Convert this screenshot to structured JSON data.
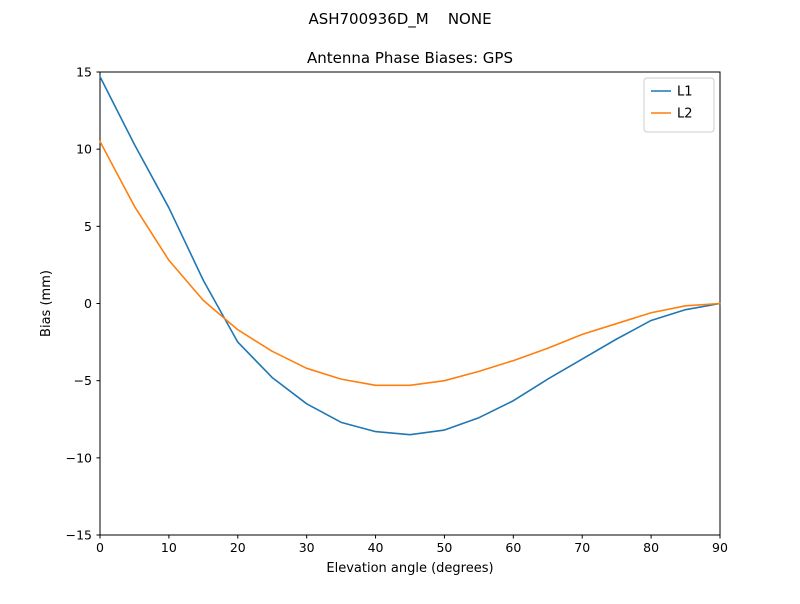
{
  "chart_data": {
    "type": "line",
    "suptitle": "ASH700936D_M    NONE",
    "title": "Antenna Phase Biases: GPS",
    "xlabel": "Elevation angle (degrees)",
    "ylabel": "Bias (mm)",
    "xlim": [
      0,
      90
    ],
    "ylim": [
      -15,
      15
    ],
    "xticks": [
      0,
      10,
      20,
      30,
      40,
      50,
      60,
      70,
      80,
      90
    ],
    "yticks": [
      -15,
      -10,
      -5,
      0,
      5,
      10,
      15
    ],
    "grid": false,
    "legend_position": "upper right",
    "x": [
      0,
      5,
      10,
      15,
      20,
      25,
      30,
      35,
      40,
      45,
      50,
      55,
      60,
      65,
      70,
      75,
      80,
      85,
      90
    ],
    "series": [
      {
        "name": "L1",
        "color": "#1f77b4",
        "values": [
          14.7,
          10.3,
          6.2,
          1.5,
          -2.5,
          -4.8,
          -6.5,
          -7.7,
          -8.3,
          -8.5,
          -8.2,
          -7.4,
          -6.3,
          -4.9,
          -3.6,
          -2.3,
          -1.1,
          -0.4,
          0.0
        ]
      },
      {
        "name": "L2",
        "color": "#ff7f0e",
        "values": [
          10.5,
          6.3,
          2.8,
          0.2,
          -1.7,
          -3.1,
          -4.2,
          -4.9,
          -5.3,
          -5.3,
          -5.0,
          -4.4,
          -3.7,
          -2.9,
          -2.0,
          -1.3,
          -0.6,
          -0.15,
          0.0
        ]
      }
    ]
  }
}
